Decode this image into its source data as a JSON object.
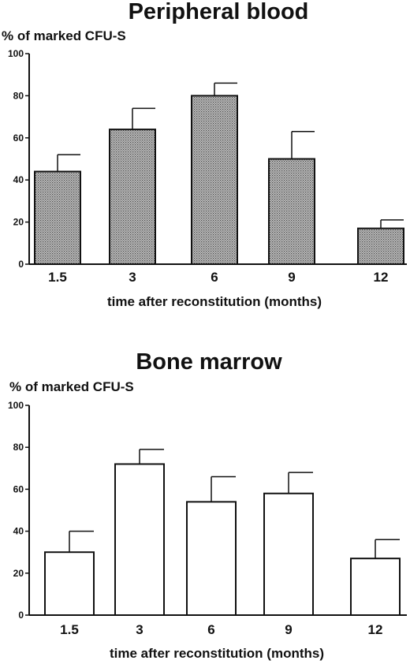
{
  "chart_data": [
    {
      "type": "bar",
      "title": "Peripheral blood",
      "ylabel": "% of marked CFU-S",
      "xlabel": "time after reconstitution (months)",
      "categories": [
        "1.5",
        "3",
        "6",
        "9",
        "12"
      ],
      "values": [
        44,
        64,
        80,
        50,
        17
      ],
      "errors": [
        8,
        10,
        6,
        13,
        4
      ],
      "ylim": [
        0,
        100
      ],
      "yticks": [
        0,
        20,
        40,
        60,
        80,
        100
      ],
      "bar_fill": "#9a9a9a",
      "bar_style": "stippled",
      "grid": false
    },
    {
      "type": "bar",
      "title": "Bone marrow",
      "ylabel": "% of marked CFU-S",
      "xlabel": "time after reconstitution (months)",
      "categories": [
        "1.5",
        "3",
        "6",
        "9",
        "12"
      ],
      "values": [
        30,
        72,
        54,
        58,
        27
      ],
      "errors": [
        10,
        7,
        12,
        10,
        9
      ],
      "ylim": [
        0,
        100
      ],
      "yticks": [
        0,
        20,
        40,
        60,
        80,
        100
      ],
      "bar_fill": "#ffffff",
      "bar_style": "open",
      "grid": false
    }
  ]
}
